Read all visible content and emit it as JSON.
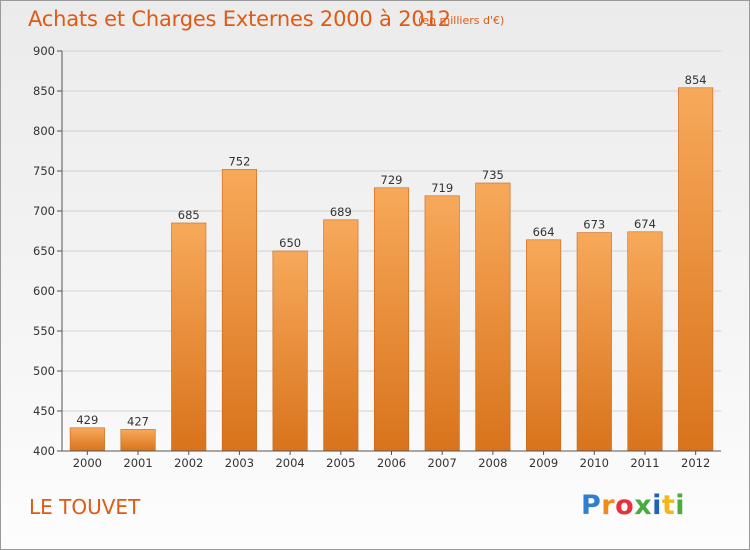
{
  "header": {
    "title": "Achats et Charges Externes 2000 à 2012",
    "subtitle": "(en milliers d'€)"
  },
  "footer": {
    "location": "LE TOUVET",
    "logo": [
      "P",
      "r",
      "o",
      "x",
      "i",
      "t",
      "i"
    ]
  },
  "colors": {
    "bar_top": "#f7a95a",
    "bar_bottom": "#d9731c",
    "bar_edge": "#c8651a",
    "grid": "#d2d2d2",
    "title": "#e05a13"
  },
  "chart_data": {
    "type": "bar",
    "title": "Achats et Charges Externes 2000 à 2012",
    "subtitle": "(en milliers d'€)",
    "categories": [
      "2000",
      "2001",
      "2002",
      "2003",
      "2004",
      "2005",
      "2006",
      "2007",
      "2008",
      "2009",
      "2010",
      "2011",
      "2012"
    ],
    "values": [
      429,
      427,
      685,
      752,
      650,
      689,
      729,
      719,
      735,
      664,
      673,
      674,
      854
    ],
    "ylim": [
      400,
      900
    ],
    "yticks": [
      400,
      450,
      500,
      550,
      600,
      650,
      700,
      750,
      800,
      850,
      900
    ],
    "grid": true,
    "legend": "none"
  }
}
